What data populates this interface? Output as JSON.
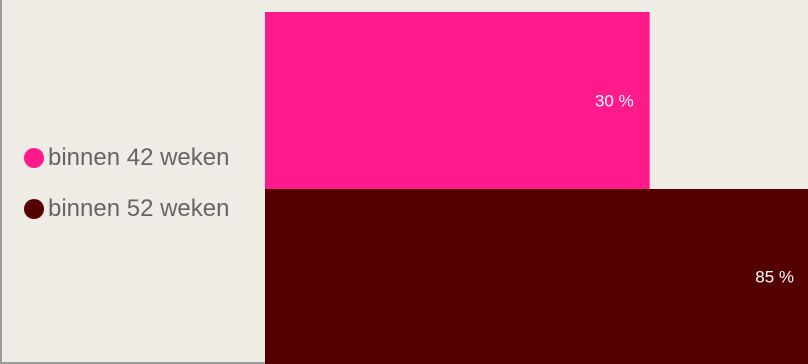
{
  "chart_data": {
    "type": "bar",
    "orientation": "horizontal",
    "title": "",
    "xlabel": "",
    "ylabel": "",
    "xlim": [
      0,
      42.5
    ],
    "grid": false,
    "legend_position": "left",
    "series": [
      {
        "name": "binnen 42 weken",
        "value": 30,
        "label": "30 %",
        "color": "#ff1a8c"
      },
      {
        "name": "binnen 52 weken",
        "value": 85,
        "label": "85 %",
        "color": "#550000"
      }
    ]
  }
}
